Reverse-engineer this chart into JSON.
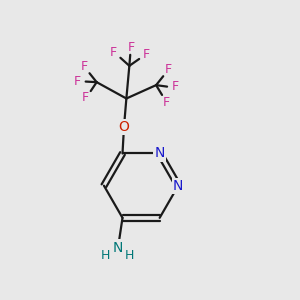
{
  "bg_color": "#e8e8e8",
  "bond_color": "#1a1a1a",
  "F_color": "#cc3399",
  "N_color": "#1a1acc",
  "O_color": "#cc2200",
  "NH2_color": "#007777",
  "figsize": [
    3.0,
    3.0
  ],
  "dpi": 100,
  "xlim": [
    0,
    10
  ],
  "ylim": [
    0,
    10
  ]
}
